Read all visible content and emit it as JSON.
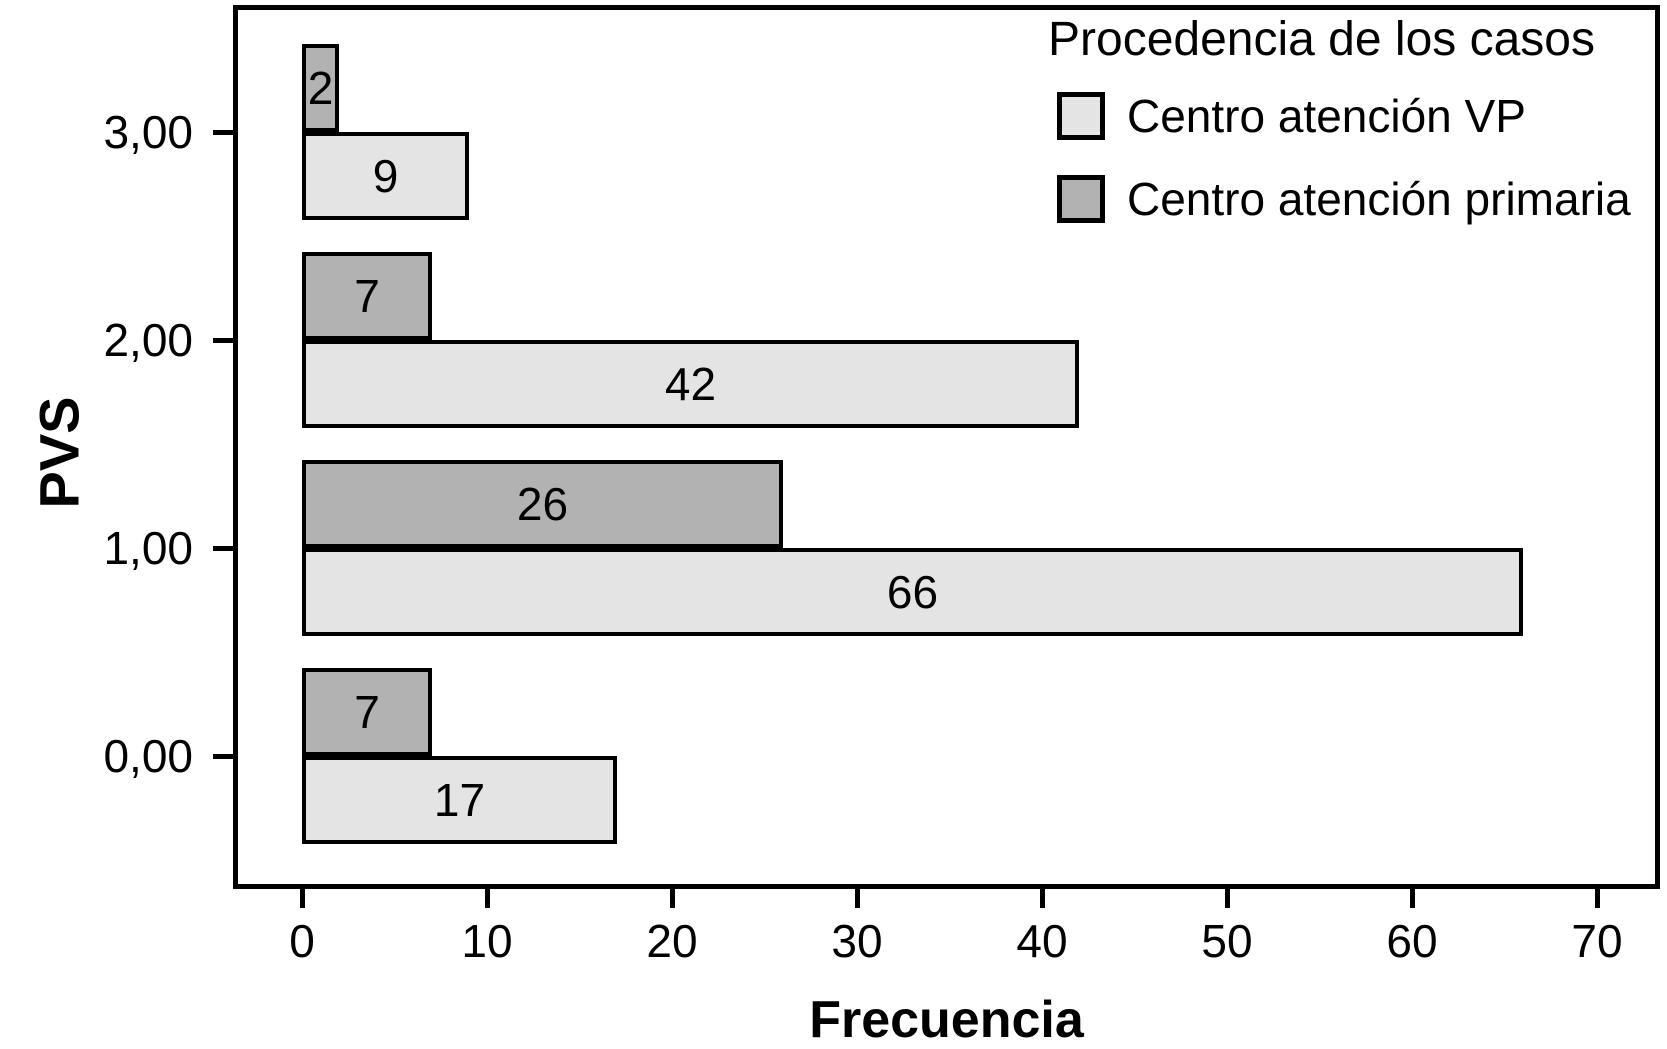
{
  "chart_data": {
    "type": "bar",
    "orientation": "horizontal",
    "legend_title": "Procedencia de los casos",
    "xlabel": "Frecuencia",
    "ylabel": "PVS",
    "categories": [
      "0,00",
      "1,00",
      "2,00",
      "3,00"
    ],
    "series": [
      {
        "name": "Centro atención VP",
        "color": "#e4e4e4",
        "values": [
          17,
          66,
          42,
          9
        ]
      },
      {
        "name": "Centro atención primaria",
        "color": "#b2b2b2",
        "values": [
          7,
          26,
          7,
          2
        ]
      }
    ],
    "x_ticks": [
      "0",
      "10",
      "20",
      "30",
      "40",
      "50",
      "60",
      "70"
    ],
    "xlim": [
      0,
      73
    ],
    "grid": false,
    "legend_position": "top-right",
    "bar_labels_shown": true
  }
}
